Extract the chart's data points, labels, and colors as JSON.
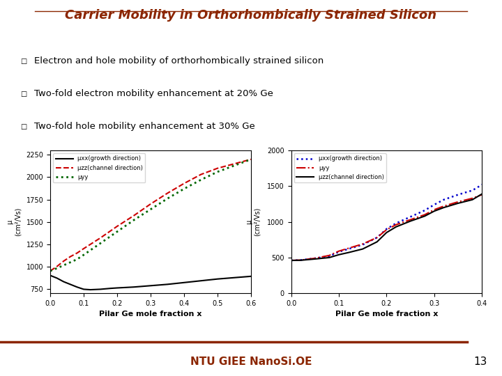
{
  "title": "Carrier Mobility in Orthorhombically Strained Silicon",
  "title_color": "#8B2500",
  "bullet_points": [
    "Electron and hole mobility of orthorhombically strained silicon",
    "Two-fold electron mobility enhancement at 20% Ge",
    "Two-fold hole mobility enhancement at 30% Ge"
  ],
  "footer_text": "NTU GIEE NanoSi.OE",
  "footer_page": "13",
  "footer_color": "#8B2500",
  "bg_color": "#FFFFFF",
  "left_plot": {
    "xlabel": "Pilar Ge mole fraction x",
    "xlim": [
      0.0,
      0.6
    ],
    "ylim": [
      700,
      2300
    ],
    "yticks": [
      750,
      1000,
      1250,
      1500,
      1750,
      2000,
      2250
    ],
    "xticks": [
      0.0,
      0.1,
      0.2,
      0.3,
      0.4,
      0.5,
      0.6
    ],
    "lines": [
      {
        "label": "μxx(growth direction)",
        "color": "black",
        "style": "-",
        "lw": 1.5,
        "x": [
          0.0,
          0.02,
          0.04,
          0.06,
          0.08,
          0.1,
          0.12,
          0.15,
          0.18,
          0.2,
          0.25,
          0.3,
          0.35,
          0.4,
          0.45,
          0.5,
          0.55,
          0.6
        ],
        "y": [
          900,
          870,
          830,
          800,
          770,
          745,
          740,
          745,
          755,
          760,
          770,
          785,
          800,
          820,
          840,
          860,
          875,
          890
        ]
      },
      {
        "label": "μzz(channel direction)",
        "color": "#CC0000",
        "style": "--",
        "lw": 1.5,
        "x": [
          0.0,
          0.02,
          0.04,
          0.06,
          0.08,
          0.1,
          0.15,
          0.2,
          0.25,
          0.3,
          0.35,
          0.4,
          0.45,
          0.5,
          0.55,
          0.6
        ],
        "y": [
          950,
          1000,
          1060,
          1110,
          1150,
          1200,
          1320,
          1450,
          1570,
          1700,
          1820,
          1930,
          2030,
          2100,
          2150,
          2200
        ]
      },
      {
        "label": "μyy",
        "color": "#006600",
        "style": ":",
        "lw": 2.0,
        "x": [
          0.0,
          0.02,
          0.05,
          0.08,
          0.1,
          0.15,
          0.2,
          0.25,
          0.3,
          0.35,
          0.4,
          0.45,
          0.5,
          0.55,
          0.6
        ],
        "y": [
          950,
          980,
          1030,
          1080,
          1130,
          1260,
          1390,
          1520,
          1640,
          1760,
          1870,
          1970,
          2060,
          2130,
          2200
        ]
      }
    ]
  },
  "right_plot": {
    "xlabel": "Pilar Ge mole fraction x",
    "xlim": [
      0.0,
      0.4
    ],
    "ylim": [
      0,
      2000
    ],
    "yticks": [
      0,
      500,
      1000,
      1500,
      2000
    ],
    "xticks": [
      0.0,
      0.1,
      0.2,
      0.3,
      0.4
    ],
    "lines": [
      {
        "label": "μxx(growth direction)",
        "color": "#0000CC",
        "style": ":",
        "lw": 1.8,
        "x": [
          0.0,
          0.02,
          0.05,
          0.08,
          0.1,
          0.12,
          0.15,
          0.18,
          0.2,
          0.22,
          0.25,
          0.28,
          0.3,
          0.32,
          0.35,
          0.38,
          0.4
        ],
        "y": [
          460,
          465,
          490,
          520,
          580,
          620,
          680,
          780,
          900,
          980,
          1070,
          1160,
          1240,
          1310,
          1380,
          1440,
          1520
        ]
      },
      {
        "label": "μyy",
        "color": "#CC0000",
        "style": "-.",
        "lw": 1.5,
        "x": [
          0.0,
          0.02,
          0.05,
          0.08,
          0.1,
          0.12,
          0.15,
          0.18,
          0.2,
          0.22,
          0.25,
          0.28,
          0.3,
          0.32,
          0.35,
          0.38,
          0.4
        ],
        "y": [
          460,
          465,
          490,
          530,
          590,
          630,
          690,
          780,
          890,
          960,
          1030,
          1100,
          1170,
          1220,
          1280,
          1330,
          1380
        ]
      },
      {
        "label": "μzz(channel direction)",
        "color": "black",
        "style": "-",
        "lw": 1.5,
        "x": [
          0.0,
          0.02,
          0.05,
          0.08,
          0.1,
          0.12,
          0.15,
          0.18,
          0.2,
          0.22,
          0.25,
          0.28,
          0.3,
          0.32,
          0.35,
          0.38,
          0.4
        ],
        "y": [
          460,
          462,
          480,
          500,
          540,
          570,
          620,
          720,
          850,
          930,
          1010,
          1080,
          1150,
          1200,
          1260,
          1310,
          1390
        ]
      }
    ]
  }
}
